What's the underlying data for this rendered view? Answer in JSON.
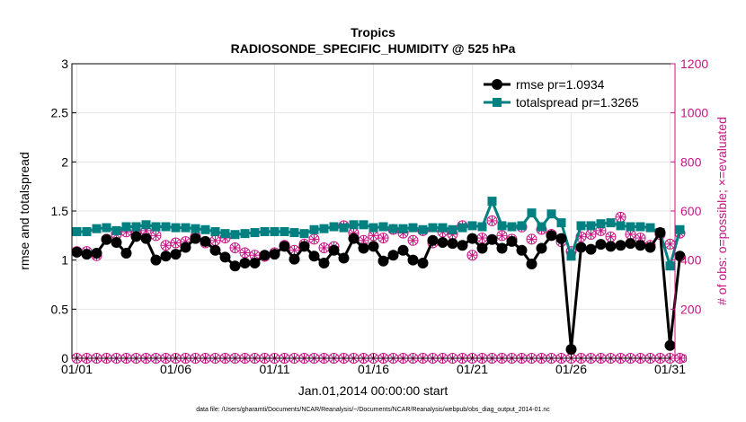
{
  "chart_data": {
    "type": "line",
    "title": "Tropics",
    "subtitle": "RADIOSONDE_SPECIFIC_HUMIDITY @ 525 hPa",
    "xlabel": "Jan.01,2014 00:00:00 start",
    "ylabel": "rmse and totalspread",
    "y2label": "# of obs: o=possible; ×=evaluated",
    "footnote": "data file: /Users/gharamti/Documents/NCAR/Reanalysis/~/Documents/NCAR/Reanalysis/webpub/obs_diag_output_2014-01.nc",
    "xlim": [
      0.75,
      31.25
    ],
    "ylim": [
      0,
      3
    ],
    "y2lim": [
      0,
      1200
    ],
    "xticks": [
      1,
      6,
      11,
      16,
      21,
      26,
      31
    ],
    "xticklabels": [
      "01/01",
      "01/06",
      "01/11",
      "01/16",
      "01/21",
      "01/26",
      "01/31"
    ],
    "yticks": [
      0,
      0.5,
      1,
      1.5,
      2,
      2.5,
      3
    ],
    "yticklabels": [
      "0",
      "0.5",
      "1",
      "1.5",
      "2",
      "2.5",
      "3"
    ],
    "y2ticks": [
      0,
      200,
      400,
      600,
      800,
      1000,
      1200
    ],
    "y2ticklabels": [
      "0",
      "200",
      "400",
      "600",
      "800",
      "1000",
      "1200"
    ],
    "colors": {
      "rmse": "#000000",
      "spread": "#008080",
      "obs": "#c71585",
      "axis2": "#c71585"
    },
    "legend": {
      "location": "top-right",
      "entries": [
        "rmse pr=1.0934",
        "totalspread pr=1.3265"
      ]
    },
    "x": [
      1,
      1.5,
      2,
      2.5,
      3,
      3.5,
      4,
      4.5,
      5,
      5.5,
      6,
      6.5,
      7,
      7.5,
      8,
      8.5,
      9,
      9.5,
      10,
      10.5,
      11,
      11.5,
      12,
      12.5,
      13,
      13.5,
      14,
      14.5,
      15,
      15.5,
      16,
      16.5,
      17,
      17.5,
      18,
      18.5,
      19,
      19.5,
      20,
      20.5,
      21,
      21.5,
      22,
      22.5,
      23,
      23.5,
      24,
      24.5,
      25,
      25.5,
      26,
      26.5,
      27,
      27.5,
      28,
      28.5,
      29,
      29.5,
      30,
      30.5,
      31,
      31.5
    ],
    "series": [
      {
        "name": "rmse",
        "label": "rmse pr=1.0934",
        "values": [
          1.08,
          1.06,
          1.07,
          1.21,
          1.18,
          1.07,
          1.24,
          1.22,
          1.0,
          1.04,
          1.06,
          1.13,
          1.22,
          1.19,
          1.1,
          1.03,
          0.94,
          0.97,
          0.97,
          1.05,
          1.06,
          1.14,
          1.01,
          1.14,
          1.04,
          0.97,
          1.1,
          1.02,
          1.22,
          1.12,
          1.14,
          0.99,
          1.05,
          1.1,
          1.0,
          0.97,
          1.2,
          1.18,
          1.17,
          1.15,
          1.22,
          1.12,
          1.21,
          1.12,
          1.19,
          1.1,
          0.96,
          1.12,
          1.25,
          1.22,
          0.09,
          1.13,
          1.11,
          1.16,
          1.14,
          1.15,
          1.17,
          1.15,
          1.13,
          1.28,
          0.13,
          1.04
        ]
      },
      {
        "name": "totalspread",
        "label": "totalspread pr=1.3265",
        "values": [
          1.29,
          1.29,
          1.32,
          1.33,
          1.3,
          1.34,
          1.34,
          1.36,
          1.34,
          1.34,
          1.33,
          1.33,
          1.32,
          1.31,
          1.29,
          1.27,
          1.26,
          1.27,
          1.28,
          1.29,
          1.29,
          1.29,
          1.28,
          1.27,
          1.31,
          1.32,
          1.34,
          1.33,
          1.36,
          1.36,
          1.33,
          1.34,
          1.32,
          1.32,
          1.33,
          1.31,
          1.33,
          1.33,
          1.31,
          1.33,
          1.35,
          1.34,
          1.6,
          1.35,
          1.34,
          1.35,
          1.48,
          1.34,
          1.47,
          1.38,
          1.04,
          1.35,
          1.35,
          1.37,
          1.38,
          1.35,
          1.34,
          1.34,
          1.33,
          1.28,
          0.94,
          1.31
        ]
      }
    ],
    "obs_possible": [
      435,
      435,
      418,
      485,
      505,
      515,
      505,
      520,
      500,
      460,
      470,
      475,
      495,
      470,
      480,
      490,
      450,
      430,
      420,
      415,
      430,
      460,
      440,
      465,
      485,
      450,
      455,
      540,
      510,
      480,
      500,
      490,
      525,
      510,
      480,
      520,
      470,
      515,
      505,
      540,
      420,
      490,
      560,
      500,
      485,
      535,
      485,
      525,
      505,
      475,
      435,
      495,
      505,
      520,
      495,
      575,
      505,
      490,
      460,
      505,
      465,
      510
    ],
    "obs_evaluated": [
      435,
      435,
      418,
      485,
      505,
      515,
      505,
      520,
      500,
      460,
      470,
      475,
      495,
      470,
      480,
      490,
      450,
      430,
      420,
      415,
      430,
      460,
      440,
      465,
      485,
      450,
      455,
      540,
      510,
      480,
      500,
      490,
      525,
      510,
      480,
      520,
      470,
      515,
      505,
      540,
      420,
      490,
      560,
      500,
      485,
      535,
      485,
      525,
      505,
      475,
      435,
      495,
      505,
      520,
      495,
      575,
      505,
      490,
      460,
      505,
      465,
      510
    ],
    "obs_zero_possible": [
      0,
      0,
      0,
      0,
      0,
      0,
      0,
      0,
      0,
      0,
      0,
      0,
      0,
      0,
      0,
      0,
      0,
      0,
      0,
      0,
      0,
      0,
      0,
      0,
      0,
      0,
      0,
      0,
      0,
      0,
      0,
      0,
      0,
      0,
      0,
      0,
      0,
      0,
      0,
      0,
      0,
      0,
      0,
      0,
      0,
      0,
      0,
      0,
      0,
      0,
      0,
      0,
      0,
      0,
      0,
      0,
      0,
      0,
      0,
      0,
      0,
      0
    ],
    "obs_zero_evaluated": [
      0,
      0,
      0,
      0,
      0,
      0,
      0,
      0,
      0,
      0,
      0,
      0,
      0,
      0,
      0,
      0,
      0,
      0,
      0,
      0,
      0,
      0,
      0,
      0,
      0,
      0,
      0,
      0,
      0,
      0,
      0,
      0,
      0,
      0,
      0,
      0,
      0,
      0,
      0,
      0,
      0,
      0,
      0,
      0,
      0,
      0,
      0,
      0,
      0,
      0,
      0,
      0,
      0,
      0,
      0,
      0,
      0,
      0,
      0,
      0,
      0,
      0
    ]
  }
}
